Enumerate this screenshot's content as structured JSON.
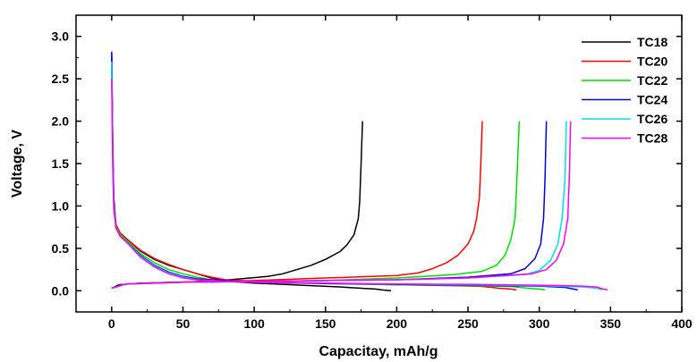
{
  "chart_data": {
    "type": "line",
    "xlabel": "Capacitay, mAh/g",
    "ylabel": "Voltage, V",
    "xlim": [
      -25,
      400
    ],
    "ylim": [
      -0.25,
      3.25
    ],
    "xticks": [
      0,
      50,
      100,
      150,
      200,
      250,
      300,
      350,
      400
    ],
    "yticks": [
      0.0,
      0.5,
      1.0,
      1.5,
      2.0,
      2.5,
      3.0
    ],
    "grid": false,
    "legend_position": "top-right",
    "series": [
      {
        "name": "TC18",
        "color": "#000000",
        "discharge": [
          [
            0,
            2.8
          ],
          [
            0.8,
            1.7
          ],
          [
            1.5,
            1.1
          ],
          [
            3,
            0.78
          ],
          [
            6,
            0.68
          ],
          [
            10,
            0.62
          ],
          [
            20,
            0.47
          ],
          [
            30,
            0.37
          ],
          [
            40,
            0.3
          ],
          [
            50,
            0.25
          ],
          [
            60,
            0.2
          ],
          [
            70,
            0.15
          ],
          [
            80,
            0.12
          ],
          [
            90,
            0.1
          ],
          [
            100,
            0.09
          ],
          [
            120,
            0.075
          ],
          [
            140,
            0.06
          ],
          [
            160,
            0.045
          ],
          [
            175,
            0.03
          ],
          [
            185,
            0.02
          ],
          [
            190,
            0.01
          ],
          [
            196,
            0.0
          ]
        ],
        "charge": [
          [
            0,
            0.03
          ],
          [
            5,
            0.07
          ],
          [
            20,
            0.09
          ],
          [
            50,
            0.1
          ],
          [
            75,
            0.12
          ],
          [
            90,
            0.14
          ],
          [
            100,
            0.155
          ],
          [
            110,
            0.17
          ],
          [
            120,
            0.2
          ],
          [
            130,
            0.25
          ],
          [
            140,
            0.3
          ],
          [
            150,
            0.37
          ],
          [
            160,
            0.46
          ],
          [
            165,
            0.54
          ],
          [
            170,
            0.66
          ],
          [
            173,
            0.85
          ],
          [
            174,
            1.05
          ],
          [
            175,
            1.5
          ],
          [
            176,
            2.0
          ]
        ]
      },
      {
        "name": "TC20",
        "color": "#ff0000",
        "discharge": [
          [
            0,
            2.7
          ],
          [
            0.8,
            1.6
          ],
          [
            1.5,
            1.05
          ],
          [
            3,
            0.78
          ],
          [
            6,
            0.68
          ],
          [
            10,
            0.62
          ],
          [
            20,
            0.48
          ],
          [
            30,
            0.38
          ],
          [
            40,
            0.31
          ],
          [
            50,
            0.25
          ],
          [
            60,
            0.2
          ],
          [
            70,
            0.16
          ],
          [
            80,
            0.13
          ],
          [
            90,
            0.12
          ],
          [
            100,
            0.11
          ],
          [
            150,
            0.09
          ],
          [
            200,
            0.07
          ],
          [
            240,
            0.06
          ],
          [
            260,
            0.05
          ],
          [
            272,
            0.03
          ],
          [
            280,
            0.02
          ],
          [
            284,
            0.01
          ]
        ],
        "charge": [
          [
            0,
            0.03
          ],
          [
            10,
            0.08
          ],
          [
            40,
            0.1
          ],
          [
            100,
            0.12
          ],
          [
            150,
            0.15
          ],
          [
            200,
            0.18
          ],
          [
            215,
            0.21
          ],
          [
            225,
            0.26
          ],
          [
            235,
            0.33
          ],
          [
            243,
            0.42
          ],
          [
            250,
            0.55
          ],
          [
            254,
            0.7
          ],
          [
            256,
            0.85
          ],
          [
            258,
            1.1
          ],
          [
            259,
            1.5
          ],
          [
            260,
            2.0
          ]
        ]
      },
      {
        "name": "TC22",
        "color": "#00dd00",
        "discharge": [
          [
            0,
            2.6
          ],
          [
            0.8,
            1.5
          ],
          [
            1.5,
            1.0
          ],
          [
            3,
            0.76
          ],
          [
            6,
            0.66
          ],
          [
            10,
            0.6
          ],
          [
            20,
            0.44
          ],
          [
            30,
            0.33
          ],
          [
            40,
            0.25
          ],
          [
            50,
            0.2
          ],
          [
            60,
            0.16
          ],
          [
            70,
            0.13
          ],
          [
            80,
            0.12
          ],
          [
            90,
            0.11
          ],
          [
            100,
            0.1
          ],
          [
            150,
            0.085
          ],
          [
            200,
            0.07
          ],
          [
            250,
            0.06
          ],
          [
            280,
            0.05
          ],
          [
            292,
            0.03
          ],
          [
            300,
            0.02
          ],
          [
            304,
            0.01
          ]
        ],
        "charge": [
          [
            0,
            0.03
          ],
          [
            10,
            0.08
          ],
          [
            50,
            0.1
          ],
          [
            100,
            0.11
          ],
          [
            150,
            0.12
          ],
          [
            200,
            0.15
          ],
          [
            240,
            0.19
          ],
          [
            260,
            0.23
          ],
          [
            270,
            0.3
          ],
          [
            276,
            0.42
          ],
          [
            280,
            0.6
          ],
          [
            283,
            0.85
          ],
          [
            284,
            1.2
          ],
          [
            285,
            1.6
          ],
          [
            286,
            2.0
          ]
        ]
      },
      {
        "name": "TC24",
        "color": "#0000dd",
        "discharge": [
          [
            0,
            2.82
          ],
          [
            0.8,
            1.6
          ],
          [
            1.5,
            1.0
          ],
          [
            3,
            0.74
          ],
          [
            6,
            0.64
          ],
          [
            10,
            0.58
          ],
          [
            20,
            0.42
          ],
          [
            30,
            0.3
          ],
          [
            40,
            0.22
          ],
          [
            50,
            0.17
          ],
          [
            60,
            0.14
          ],
          [
            70,
            0.13
          ],
          [
            80,
            0.12
          ],
          [
            90,
            0.11
          ],
          [
            100,
            0.1
          ],
          [
            150,
            0.085
          ],
          [
            200,
            0.075
          ],
          [
            250,
            0.065
          ],
          [
            300,
            0.055
          ],
          [
            318,
            0.04
          ],
          [
            324,
            0.02
          ],
          [
            327,
            0.01
          ]
        ],
        "charge": [
          [
            0,
            0.03
          ],
          [
            10,
            0.08
          ],
          [
            50,
            0.1
          ],
          [
            100,
            0.11
          ],
          [
            150,
            0.12
          ],
          [
            200,
            0.13
          ],
          [
            250,
            0.16
          ],
          [
            280,
            0.2
          ],
          [
            290,
            0.26
          ],
          [
            297,
            0.38
          ],
          [
            301,
            0.55
          ],
          [
            303,
            0.85
          ],
          [
            304,
            1.3
          ],
          [
            305,
            2.0
          ]
        ]
      },
      {
        "name": "TC26",
        "color": "#00e0e0",
        "discharge": [
          [
            0,
            2.7
          ],
          [
            0.8,
            1.5
          ],
          [
            1.5,
            1.0
          ],
          [
            3,
            0.74
          ],
          [
            6,
            0.64
          ],
          [
            10,
            0.58
          ],
          [
            20,
            0.41
          ],
          [
            30,
            0.29
          ],
          [
            40,
            0.21
          ],
          [
            50,
            0.16
          ],
          [
            60,
            0.13
          ],
          [
            70,
            0.12
          ],
          [
            80,
            0.11
          ],
          [
            90,
            0.105
          ],
          [
            100,
            0.1
          ],
          [
            150,
            0.09
          ],
          [
            200,
            0.08
          ],
          [
            250,
            0.07
          ],
          [
            300,
            0.06
          ],
          [
            330,
            0.045
          ],
          [
            340,
            0.03
          ],
          [
            344,
            0.01
          ]
        ],
        "charge": [
          [
            0,
            0.03
          ],
          [
            10,
            0.08
          ],
          [
            50,
            0.1
          ],
          [
            100,
            0.11
          ],
          [
            150,
            0.12
          ],
          [
            200,
            0.13
          ],
          [
            250,
            0.15
          ],
          [
            290,
            0.19
          ],
          [
            300,
            0.24
          ],
          [
            308,
            0.36
          ],
          [
            313,
            0.55
          ],
          [
            316,
            0.85
          ],
          [
            318,
            1.3
          ],
          [
            319,
            2.0
          ]
        ]
      },
      {
        "name": "TC28",
        "color": "#ff00ff",
        "discharge": [
          [
            0,
            2.5
          ],
          [
            0.8,
            1.4
          ],
          [
            1.5,
            0.95
          ],
          [
            3,
            0.74
          ],
          [
            6,
            0.64
          ],
          [
            10,
            0.58
          ],
          [
            20,
            0.4
          ],
          [
            30,
            0.28
          ],
          [
            40,
            0.2
          ],
          [
            50,
            0.15
          ],
          [
            60,
            0.13
          ],
          [
            70,
            0.12
          ],
          [
            80,
            0.11
          ],
          [
            90,
            0.1
          ],
          [
            100,
            0.1
          ],
          [
            150,
            0.09
          ],
          [
            200,
            0.08
          ],
          [
            250,
            0.075
          ],
          [
            300,
            0.065
          ],
          [
            330,
            0.055
          ],
          [
            340,
            0.045
          ],
          [
            345,
            0.02
          ],
          [
            348,
            0.01
          ]
        ],
        "charge": [
          [
            0,
            0.03
          ],
          [
            10,
            0.08
          ],
          [
            50,
            0.1
          ],
          [
            100,
            0.11
          ],
          [
            150,
            0.12
          ],
          [
            200,
            0.13
          ],
          [
            250,
            0.15
          ],
          [
            295,
            0.2
          ],
          [
            305,
            0.25
          ],
          [
            312,
            0.36
          ],
          [
            317,
            0.55
          ],
          [
            320,
            0.85
          ],
          [
            321,
            1.3
          ],
          [
            322,
            2.0
          ]
        ]
      }
    ]
  }
}
